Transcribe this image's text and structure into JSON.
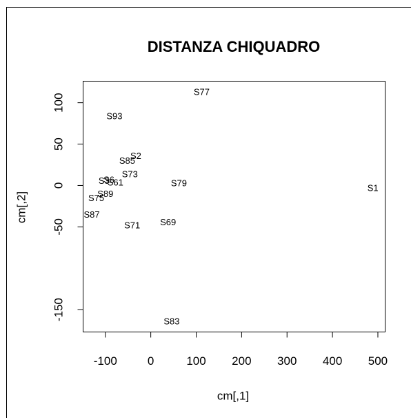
{
  "chart_data": {
    "type": "scatter",
    "title": "DISTANZA CHIQUADRO",
    "x_label": "cm[,1]",
    "y_label": "cm[,2]",
    "labels": [
      "S77",
      "S93",
      "S2",
      "S85",
      "S73",
      "S79",
      "S1",
      "S3",
      "S6",
      "S61",
      "S89",
      "S75",
      "S87",
      "S71",
      "S69",
      "S83"
    ],
    "x": [
      112,
      -80,
      -33,
      -52,
      -46,
      62,
      489,
      -103,
      -92,
      -78,
      -100,
      -120,
      -130,
      -41,
      38,
      46
    ],
    "y": [
      112,
      83,
      35,
      29,
      13,
      2,
      -4,
      5,
      6,
      3,
      -11,
      -16,
      -36,
      -49,
      -45,
      -165
    ],
    "xlim": [
      -149,
      516
    ],
    "ylim": [
      -177,
      126
    ],
    "xticks": [
      -100,
      0,
      100,
      200,
      300,
      400,
      500
    ],
    "yticks": [
      -150,
      -50,
      0,
      50,
      100
    ]
  }
}
